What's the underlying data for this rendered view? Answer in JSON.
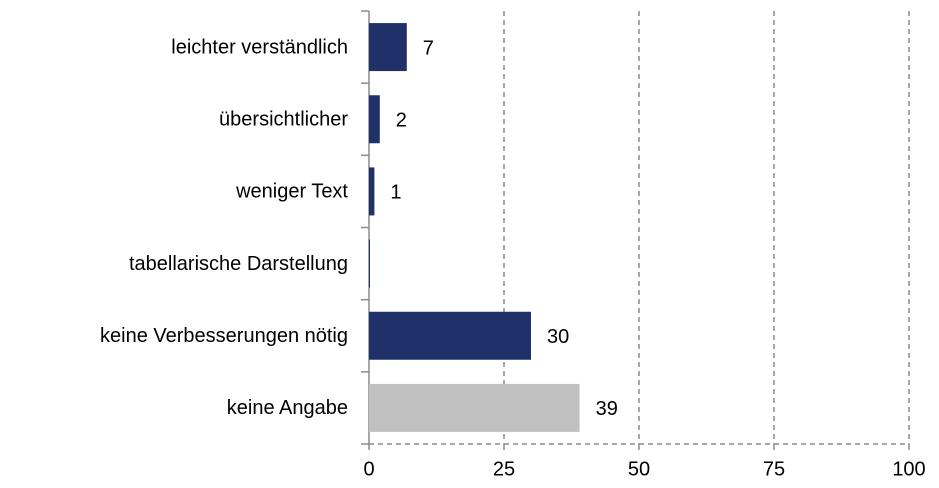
{
  "chart_data": {
    "type": "bar",
    "orientation": "horizontal",
    "categories": [
      "leichter verständlich",
      "übersichtlicher",
      "weniger Text",
      "tabellarische Darstellung",
      "keine Verbesserungen nötig",
      "keine Angabe"
    ],
    "values": [
      7,
      2,
      1,
      0,
      30,
      39
    ],
    "colors": [
      "#1f3168",
      "#1f3168",
      "#1f3168",
      "#1f3168",
      "#1f3168",
      "#c0c0c0"
    ],
    "xlim": [
      0,
      100
    ],
    "xticks": [
      0,
      25,
      50,
      75,
      100
    ],
    "grid": true
  }
}
